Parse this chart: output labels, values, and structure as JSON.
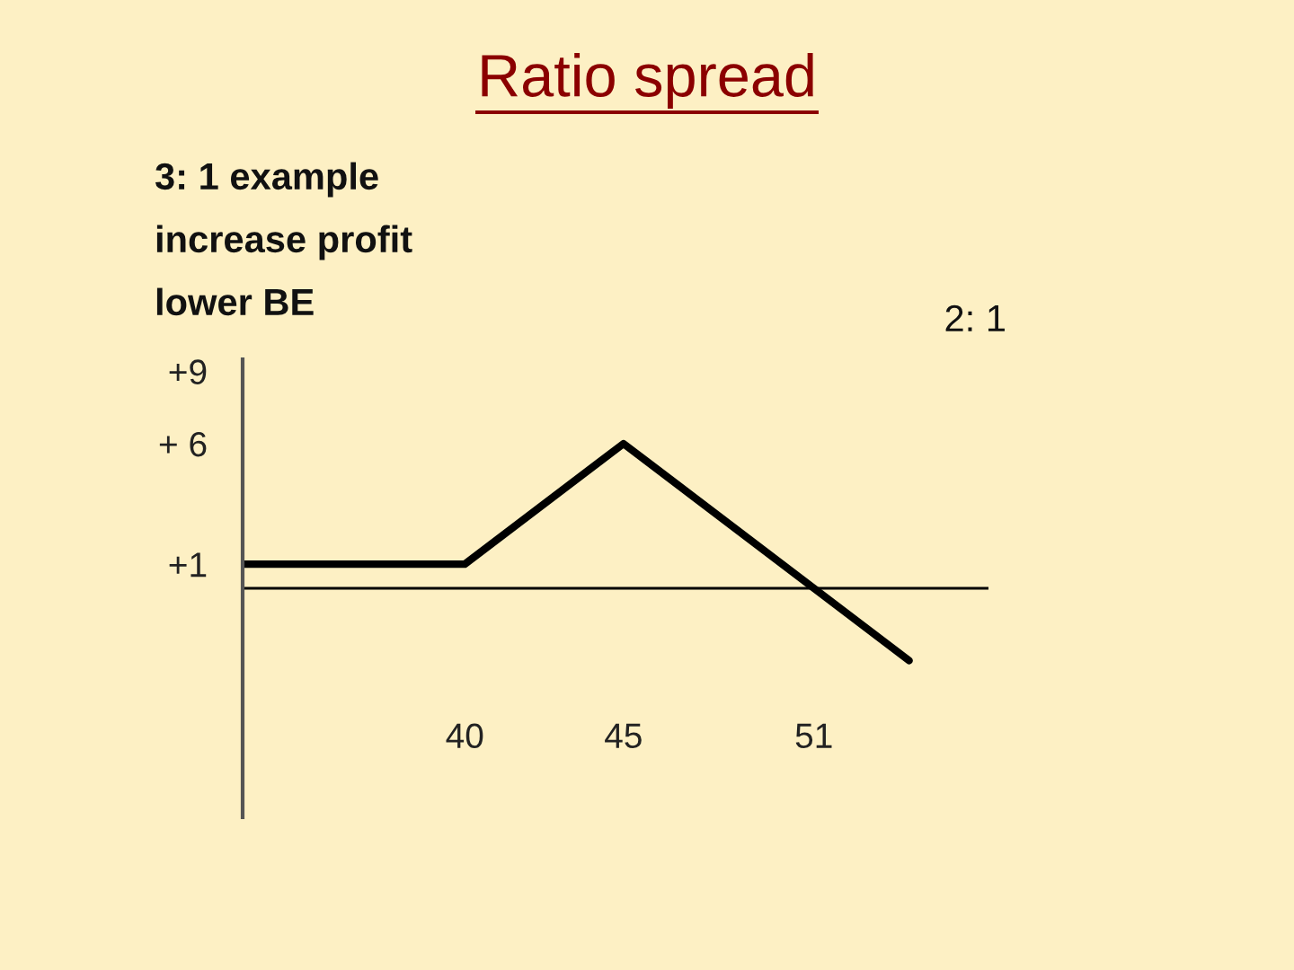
{
  "chart_data": {
    "type": "line",
    "title": "Ratio spread",
    "annotations": [
      "3: 1 example",
      "increase profit",
      "lower BE",
      "2: 1"
    ],
    "series": [
      {
        "color": "#000000",
        "x": [
          33,
          40,
          45,
          51,
          54
        ],
        "values": [
          1,
          1,
          6,
          0,
          -3
        ]
      }
    ],
    "xlim": [
      33,
      56.5
    ],
    "xticks": [
      40,
      45,
      51
    ],
    "ylim": [
      -9.5,
      9.5
    ],
    "yticks": [
      {
        "value": 9,
        "label": "+9"
      },
      {
        "value": 6,
        "label": "+ 6"
      },
      {
        "value": 1,
        "label": "+1"
      }
    ],
    "ref_lines": [
      {
        "axis": "y",
        "value": 0,
        "label": null,
        "color": "#000000"
      }
    ],
    "grid": false,
    "legend": false,
    "marker": "none",
    "line_style": "solid"
  }
}
